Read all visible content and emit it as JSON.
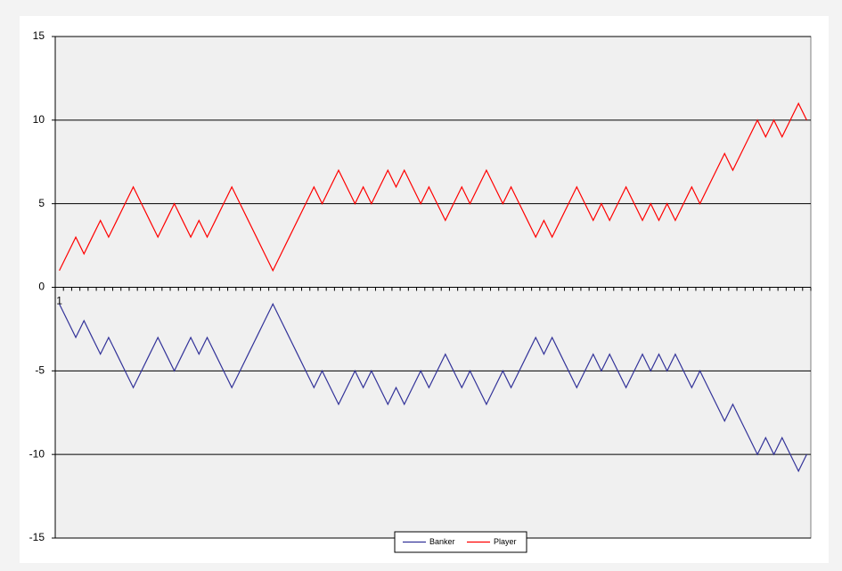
{
  "chart_data": {
    "type": "line",
    "categories": [
      "1",
      null,
      null,
      null,
      null,
      null,
      null,
      null,
      null,
      null,
      null,
      null,
      null,
      null,
      null,
      null,
      null,
      null,
      null,
      null,
      null,
      null,
      null,
      null,
      null,
      null,
      null,
      null,
      null,
      null,
      null,
      null,
      null,
      null,
      null,
      null,
      null,
      null,
      null,
      null,
      null,
      null,
      null,
      null,
      null,
      null,
      null,
      null,
      null,
      null,
      null,
      null,
      null,
      null,
      null,
      null,
      null,
      null,
      null,
      null,
      null,
      null,
      null,
      null,
      null,
      null,
      null,
      null,
      null,
      null,
      null,
      null,
      null,
      null,
      null,
      null,
      null,
      null,
      null,
      null,
      null,
      null,
      null,
      null,
      null,
      null,
      null,
      null,
      null,
      null,
      null,
      null
    ],
    "series": [
      {
        "name": "Banker",
        "color": "#333399",
        "values": [
          -1,
          -2,
          -3,
          -2,
          -3,
          -4,
          -3,
          -4,
          -5,
          -6,
          -5,
          -4,
          -3,
          -4,
          -5,
          -4,
          -3,
          -4,
          -3,
          -4,
          -5,
          -6,
          -5,
          -4,
          -3,
          -2,
          -1,
          -2,
          -3,
          -4,
          -5,
          -6,
          -5,
          -6,
          -7,
          -6,
          -5,
          -6,
          -5,
          -6,
          -7,
          -6,
          -7,
          -6,
          -5,
          -6,
          -5,
          -4,
          -5,
          -6,
          -5,
          -6,
          -7,
          -6,
          -5,
          -6,
          -5,
          -4,
          -3,
          -4,
          -3,
          -4,
          -5,
          -6,
          -5,
          -4,
          -5,
          -4,
          -5,
          -6,
          -5,
          -4,
          -5,
          -4,
          -5,
          -4,
          -5,
          -6,
          -5,
          -6,
          -7,
          -8,
          -7,
          -8,
          -9,
          -10,
          -9,
          -10,
          -9,
          -10,
          -11,
          -10
        ]
      },
      {
        "name": "Player",
        "color": "#ff0000",
        "values": [
          1,
          2,
          3,
          2,
          3,
          4,
          3,
          4,
          5,
          6,
          5,
          4,
          3,
          4,
          5,
          4,
          3,
          4,
          3,
          4,
          5,
          6,
          5,
          4,
          3,
          2,
          1,
          2,
          3,
          4,
          5,
          6,
          5,
          6,
          7,
          6,
          5,
          6,
          5,
          6,
          7,
          6,
          7,
          6,
          5,
          6,
          5,
          4,
          5,
          6,
          5,
          6,
          7,
          6,
          5,
          6,
          5,
          4,
          3,
          4,
          3,
          4,
          5,
          6,
          5,
          4,
          5,
          4,
          5,
          6,
          5,
          4,
          5,
          4,
          5,
          4,
          5,
          6,
          5,
          6,
          7,
          8,
          7,
          8,
          9,
          10,
          9,
          10,
          9,
          10,
          11,
          10
        ]
      }
    ],
    "ylim": [
      -15,
      15
    ],
    "yticks": [
      -15,
      -10,
      -5,
      0,
      5,
      10,
      15
    ],
    "grid": true,
    "legend": "bottom"
  }
}
